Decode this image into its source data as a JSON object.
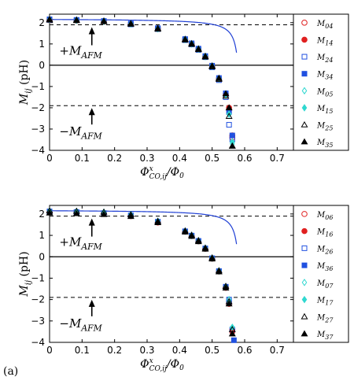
{
  "panel_label": "(a)",
  "chart_data": [
    {
      "type": "scatter",
      "xlabel": "Φ^x_CO,ij/Φ0",
      "ylabel": "Mij (pH)",
      "xlim": [
        0,
        0.75
      ],
      "ylim": [
        -4,
        2.4
      ],
      "xticks": [
        "0",
        "0.1",
        "0.2",
        "0.3",
        "0.4",
        "0.5",
        "0.6",
        "0.7"
      ],
      "yticks": [
        "2",
        "1",
        "0",
        "-1",
        "-2",
        "-3",
        "-4"
      ],
      "annotations": [
        {
          "text": "+M_AFM",
          "y": 1.9,
          "arrow_x": 0.13,
          "label_x": 0.03,
          "label_y": 0.55
        },
        {
          "text": "−M_AFM",
          "y": -1.9,
          "arrow_x": 0.13,
          "label_x": 0.03,
          "label_y": -3.0
        }
      ],
      "fit_curve": {
        "color": "#1f3fd4",
        "a": 2.15,
        "xc": 0.59,
        "d": 0.024
      },
      "legend": [
        "M04",
        "M14",
        "M24",
        "M34",
        "M05",
        "M15",
        "M25",
        "M35"
      ],
      "series": [
        {
          "name": "M04",
          "marker": "circle-open",
          "color": "#e02020",
          "x": [
            0,
            0.083,
            0.167,
            0.25,
            0.333,
            0.417,
            0.437,
            0.458,
            0.479,
            0.5,
            0.521,
            0.542,
            0.552,
            0.562
          ],
          "y": [
            2.12,
            2.1,
            2.05,
            1.95,
            1.72,
            1.2,
            1.0,
            0.75,
            0.4,
            -0.05,
            -0.65,
            -1.4,
            -2.1,
            -3.4
          ]
        },
        {
          "name": "M14",
          "marker": "circle-filled",
          "color": "#e02020",
          "x": [
            0,
            0.083,
            0.167,
            0.25,
            0.333,
            0.417,
            0.437,
            0.458,
            0.479,
            0.5,
            0.521,
            0.542,
            0.552,
            0.562
          ],
          "y": [
            2.15,
            2.12,
            2.07,
            1.95,
            1.73,
            1.22,
            1.02,
            0.77,
            0.42,
            -0.03,
            -0.62,
            -1.35,
            -2.0,
            -3.3
          ]
        },
        {
          "name": "M24",
          "marker": "square-open",
          "color": "#2050e0",
          "x": [
            0,
            0.083,
            0.167,
            0.25,
            0.333,
            0.417,
            0.437,
            0.458,
            0.479,
            0.5,
            0.521,
            0.542,
            0.552,
            0.562
          ],
          "y": [
            2.13,
            2.12,
            2.07,
            1.92,
            1.7,
            1.18,
            0.98,
            0.72,
            0.38,
            -0.1,
            -0.7,
            -1.5,
            -2.8,
            -3.5
          ]
        },
        {
          "name": "M34",
          "marker": "square-filled",
          "color": "#2050e0",
          "x": [
            0,
            0.083,
            0.167,
            0.25,
            0.333,
            0.417,
            0.437,
            0.458,
            0.479,
            0.5,
            0.521,
            0.542,
            0.552,
            0.562
          ],
          "y": [
            2.16,
            2.13,
            2.08,
            1.96,
            1.74,
            1.23,
            1.03,
            0.78,
            0.43,
            -0.02,
            -0.6,
            -1.32,
            -2.2,
            -3.3
          ]
        },
        {
          "name": "M05",
          "marker": "diamond-open",
          "color": "#30d8d0",
          "x": [
            0,
            0.083,
            0.167,
            0.25,
            0.333,
            0.417,
            0.437,
            0.458,
            0.479,
            0.5,
            0.521,
            0.542,
            0.552,
            0.562
          ],
          "y": [
            2.14,
            2.11,
            2.06,
            1.94,
            1.71,
            1.21,
            1.0,
            0.76,
            0.41,
            -0.04,
            -0.63,
            -1.38,
            -2.3,
            -3.7
          ]
        },
        {
          "name": "M15",
          "marker": "diamond-filled",
          "color": "#30d8d0",
          "x": [
            0,
            0.083,
            0.167,
            0.25,
            0.333,
            0.417,
            0.437,
            0.458,
            0.479,
            0.5,
            0.521,
            0.542,
            0.552,
            0.562
          ],
          "y": [
            2.15,
            2.12,
            2.07,
            1.95,
            1.72,
            1.21,
            1.01,
            0.76,
            0.41,
            -0.05,
            -0.64,
            -1.4,
            -2.3,
            -3.6
          ]
        },
        {
          "name": "M25",
          "marker": "triangle-open",
          "color": "#000000",
          "x": [
            0,
            0.083,
            0.167,
            0.25,
            0.333,
            0.417,
            0.437,
            0.458,
            0.479,
            0.5,
            0.521,
            0.542,
            0.552,
            0.562
          ],
          "y": [
            2.13,
            2.1,
            2.05,
            1.93,
            1.7,
            1.19,
            0.99,
            0.74,
            0.39,
            -0.07,
            -0.66,
            -1.45,
            -2.4,
            -3.8
          ]
        },
        {
          "name": "M35",
          "marker": "triangle-filled",
          "color": "#000000",
          "x": [
            0,
            0.083,
            0.167,
            0.25,
            0.333,
            0.417,
            0.437,
            0.458,
            0.479,
            0.5,
            0.521,
            0.542,
            0.552,
            0.562
          ],
          "y": [
            2.16,
            2.13,
            2.08,
            1.96,
            1.73,
            1.22,
            1.02,
            0.77,
            0.42,
            -0.03,
            -0.61,
            -1.34,
            -2.0,
            -3.8
          ]
        }
      ]
    },
    {
      "type": "scatter",
      "xlabel": "Φ^x_CO,ij/Φ0",
      "ylabel": "Mij (pH)",
      "xlim": [
        0,
        0.75
      ],
      "ylim": [
        -4,
        2.4
      ],
      "xticks": [
        "0",
        "0.1",
        "0.2",
        "0.3",
        "0.4",
        "0.5",
        "0.6",
        "0.7"
      ],
      "yticks": [
        "2",
        "1",
        "0",
        "-1",
        "-2",
        "-3",
        "-4"
      ],
      "annotations": [
        {
          "text": "+M_AFM",
          "y": 1.9,
          "arrow_x": 0.13,
          "label_x": 0.03,
          "label_y": 0.55
        },
        {
          "text": "−M_AFM",
          "y": -1.9,
          "arrow_x": 0.13,
          "label_x": 0.03,
          "label_y": -3.0
        }
      ],
      "fit_curve": {
        "color": "#1f3fd4",
        "a": 2.15,
        "xc": 0.59,
        "d": 0.024
      },
      "legend": [
        "M06",
        "M16",
        "M26",
        "M36",
        "M07",
        "M17",
        "M27",
        "M37"
      ],
      "series": [
        {
          "name": "M06",
          "marker": "circle-open",
          "color": "#e02020",
          "x": [
            0,
            0.083,
            0.167,
            0.25,
            0.333,
            0.417,
            0.437,
            0.458,
            0.479,
            0.5,
            0.521,
            0.542,
            0.552,
            0.562
          ],
          "y": [
            2.1,
            2.07,
            2.02,
            1.92,
            1.62,
            1.18,
            0.98,
            0.73,
            0.38,
            -0.08,
            -0.68,
            -1.42,
            -2.1,
            -3.4
          ]
        },
        {
          "name": "M16",
          "marker": "circle-filled",
          "color": "#e02020",
          "x": [
            0,
            0.083,
            0.167,
            0.25,
            0.333,
            0.417,
            0.437,
            0.458,
            0.479,
            0.5,
            0.521,
            0.542,
            0.552,
            0.562
          ],
          "y": [
            2.08,
            2.05,
            2.0,
            1.9,
            1.6,
            1.17,
            0.97,
            0.72,
            0.37,
            -0.09,
            -0.69,
            -1.45,
            -2.2,
            -3.5
          ]
        },
        {
          "name": "M26",
          "marker": "square-open",
          "color": "#2050e0",
          "x": [
            0,
            0.083,
            0.167,
            0.25,
            0.333,
            0.417,
            0.437,
            0.458,
            0.479,
            0.5,
            0.521,
            0.542,
            0.552,
            0.562
          ],
          "y": [
            2.12,
            2.09,
            2.04,
            1.93,
            1.64,
            1.19,
            0.99,
            0.74,
            0.39,
            -0.07,
            -0.67,
            -1.4,
            -2.0,
            -3.4
          ]
        },
        {
          "name": "M36",
          "marker": "square-filled",
          "color": "#2050e0",
          "x": [
            0,
            0.083,
            0.167,
            0.25,
            0.333,
            0.417,
            0.437,
            0.458,
            0.479,
            0.5,
            0.521,
            0.542,
            0.552,
            0.567
          ],
          "y": [
            2.1,
            2.07,
            2.02,
            1.91,
            1.62,
            1.18,
            0.98,
            0.73,
            0.38,
            -0.08,
            -0.68,
            -1.42,
            -2.1,
            -3.9
          ]
        },
        {
          "name": "M07",
          "marker": "diamond-open",
          "color": "#30d8d0",
          "x": [
            0,
            0.083,
            0.167,
            0.25,
            0.333,
            0.417,
            0.437,
            0.458,
            0.479,
            0.5,
            0.521,
            0.542,
            0.552,
            0.562
          ],
          "y": [
            2.14,
            2.12,
            2.08,
            1.97,
            1.66,
            1.2,
            1.0,
            0.75,
            0.4,
            -0.06,
            -0.66,
            -1.4,
            -2.0,
            -3.3
          ]
        },
        {
          "name": "M17",
          "marker": "diamond-filled",
          "color": "#30d8d0",
          "x": [
            0,
            0.083,
            0.167,
            0.25,
            0.333,
            0.417,
            0.437,
            0.458,
            0.479,
            0.5,
            0.521,
            0.542,
            0.552,
            0.562
          ],
          "y": [
            2.13,
            2.11,
            2.07,
            1.96,
            1.65,
            1.19,
            0.99,
            0.74,
            0.39,
            -0.07,
            -0.67,
            -1.41,
            -2.1,
            -3.3
          ]
        },
        {
          "name": "M27",
          "marker": "triangle-open",
          "color": "#000000",
          "x": [
            0,
            0.083,
            0.167,
            0.25,
            0.333,
            0.417,
            0.437,
            0.458,
            0.479,
            0.5,
            0.521,
            0.542,
            0.552,
            0.562
          ],
          "y": [
            2.15,
            2.13,
            2.09,
            1.97,
            1.66,
            1.21,
            1.01,
            0.76,
            0.41,
            -0.05,
            -0.65,
            -1.38,
            -2.1,
            -3.4
          ]
        },
        {
          "name": "M37",
          "marker": "triangle-filled",
          "color": "#000000",
          "x": [
            0,
            0.083,
            0.167,
            0.25,
            0.333,
            0.417,
            0.437,
            0.458,
            0.479,
            0.5,
            0.521,
            0.542,
            0.552,
            0.562
          ],
          "y": [
            2.05,
            2.02,
            1.98,
            1.89,
            1.6,
            1.16,
            0.96,
            0.71,
            0.36,
            -0.1,
            -0.7,
            -1.46,
            -2.2,
            -3.6
          ]
        }
      ]
    }
  ]
}
